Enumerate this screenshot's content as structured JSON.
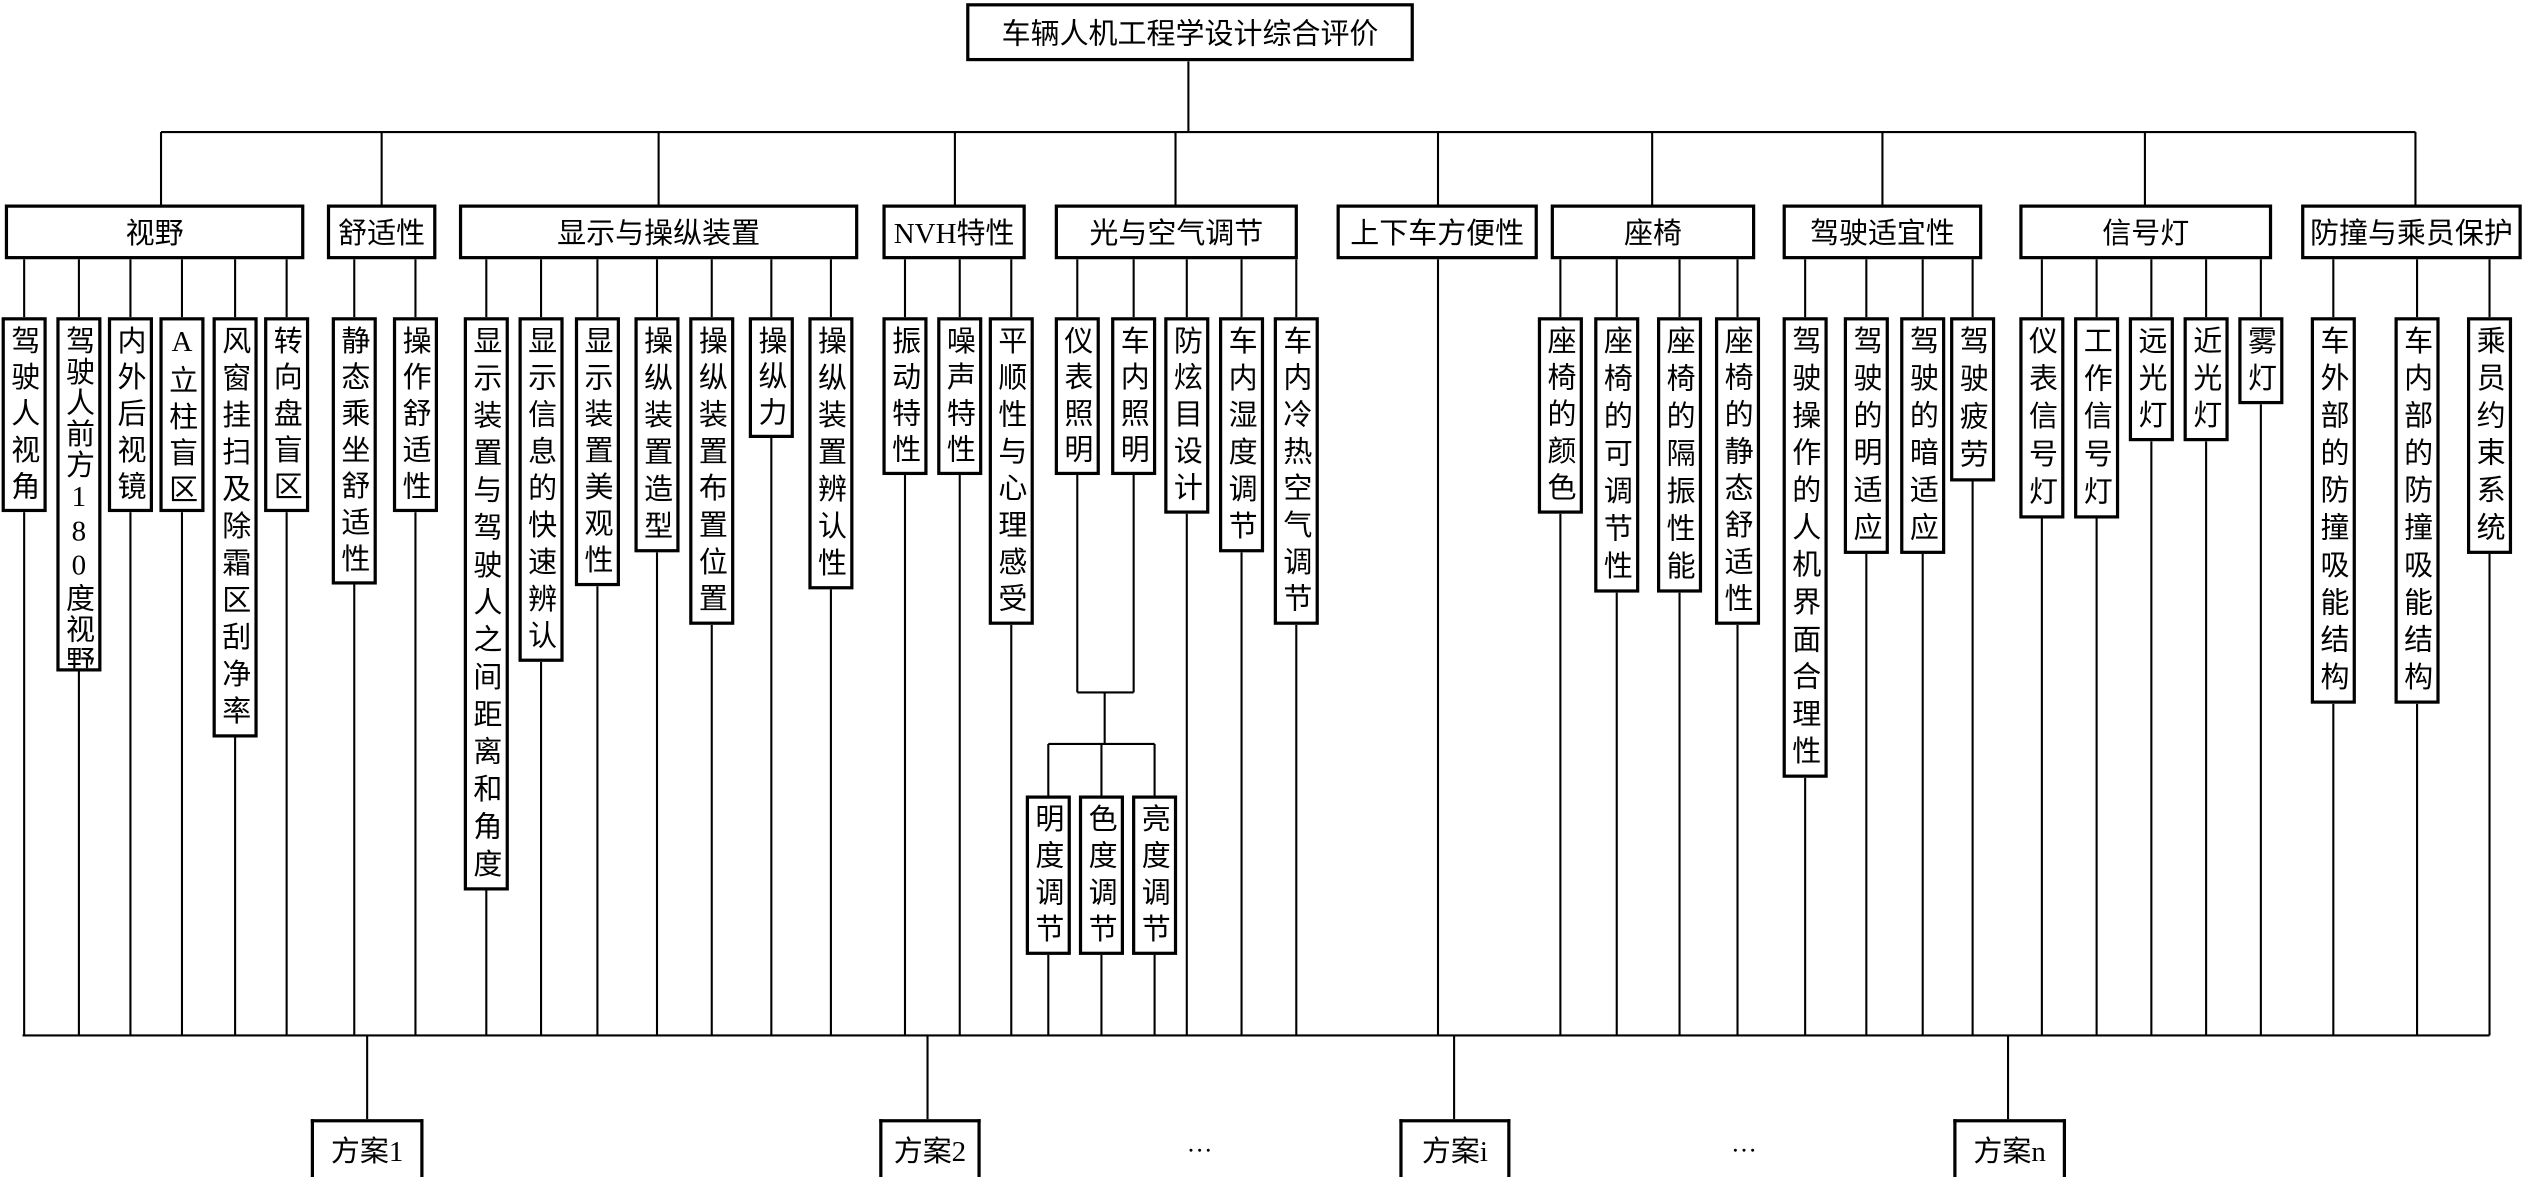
{
  "root": "车辆人机工程学设计综合评价",
  "categories": [
    {
      "label": "视野",
      "items": [
        "驾驶人视角",
        "驾驶人前方180度视野",
        "内外后视镜",
        "A立柱盲区",
        "风窗挂扫及除霜区刮净率",
        "转向盘盲区"
      ]
    },
    {
      "label": "舒适性",
      "items": [
        "静态乘坐舒适性",
        "操作舒适性"
      ]
    },
    {
      "label": "显示与操纵装置",
      "items": [
        "显示装置与驾驶人之间距离和角度",
        "显示信息的快速辨认",
        "显示装置美观性",
        "操纵装置造型",
        "操纵装置布置位置",
        "操纵力",
        "操纵装置辨认性"
      ]
    },
    {
      "label": "NVH特性",
      "items": [
        "振动特性",
        "噪声特性",
        "平顺性与心理感受"
      ]
    },
    {
      "label": "光与空气调节",
      "items": [
        "仪表照明",
        "车内照明",
        "防炫目设计",
        "车内湿度调节",
        "车内冷热空气调节"
      ]
    },
    {
      "label": "上下车方便性",
      "items": []
    },
    {
      "label": "座椅",
      "items": [
        "座椅的颜色",
        "座椅的可调节性",
        "座椅的隔振性能",
        "座椅的静态舒适性"
      ]
    },
    {
      "label": "驾驶适宜性",
      "items": [
        "驾驶操作的人机界面合理性",
        "驾驶的明适应",
        "驾驶的暗适应",
        "驾驶疲劳"
      ]
    },
    {
      "label": "信号灯",
      "items": [
        "仪表信号灯",
        "工作信号灯",
        "远光灯",
        "近光灯",
        "雾灯"
      ]
    },
    {
      "label": "防撞与乘员保护",
      "items": [
        "车外部的防撞吸能结构",
        "车内部的防撞吸能结构",
        "乘员约束系统"
      ]
    }
  ],
  "lighting_sub_items": [
    "明度调节",
    "色度调节",
    "亮度调节"
  ],
  "alternatives": [
    "方案1",
    "方案2",
    "方案i",
    "方案n"
  ],
  "ellipsis": "…"
}
